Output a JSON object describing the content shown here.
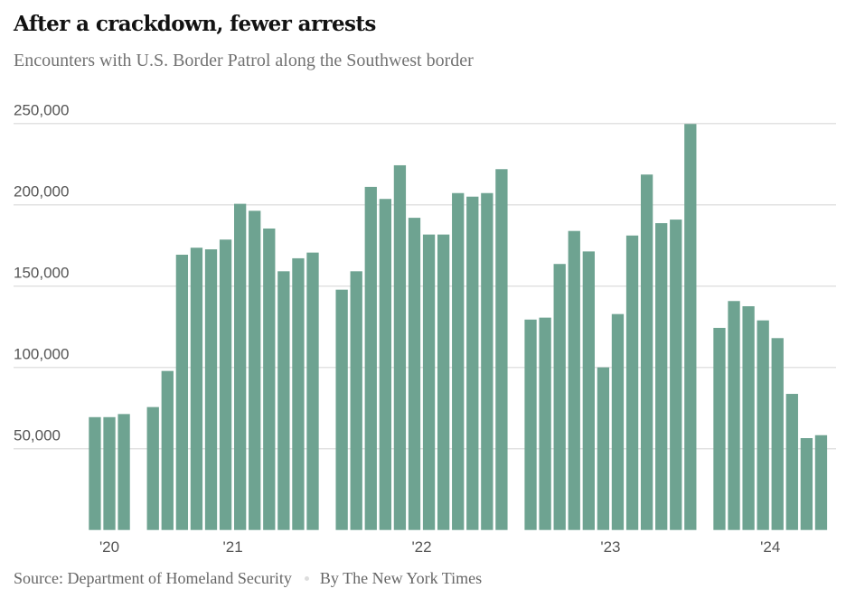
{
  "chart_data": {
    "type": "bar",
    "title": "After a crackdown, fewer arrests",
    "subtitle": "Encounters with U.S. Border Patrol along the Southwest border",
    "xlabel": "",
    "ylabel": "",
    "ylim": [
      0,
      250000
    ],
    "yticks": [
      50000,
      100000,
      150000,
      200000,
      250000
    ],
    "ytick_labels": [
      "50,000",
      "100,000",
      "150,000",
      "200,000",
      "250,000"
    ],
    "grid": true,
    "bar_color": "#6ea391",
    "groups": [
      {
        "label": "'20",
        "months": [
          "2020-10",
          "2020-11",
          "2020-12"
        ],
        "values": [
          69400,
          69400,
          71300
        ]
      },
      {
        "label": "'21",
        "months": [
          "2021-01",
          "2021-02",
          "2021-03",
          "2021-04",
          "2021-05",
          "2021-06",
          "2021-07",
          "2021-08",
          "2021-09",
          "2021-10",
          "2021-11",
          "2021-12"
        ],
        "values": [
          75600,
          97800,
          169300,
          173600,
          172600,
          178600,
          200600,
          196300,
          185400,
          159100,
          167100,
          170600
        ]
      },
      {
        "label": "'22",
        "months": [
          "2022-01",
          "2022-02",
          "2022-03",
          "2022-04",
          "2022-05",
          "2022-06",
          "2022-07",
          "2022-08",
          "2022-09",
          "2022-10",
          "2022-11",
          "2022-12"
        ],
        "values": [
          147800,
          159100,
          211000,
          203600,
          224300,
          192000,
          181700,
          181700,
          207200,
          205000,
          207200,
          221900
        ]
      },
      {
        "label": "'23",
        "months": [
          "2023-01",
          "2023-02",
          "2023-03",
          "2023-04",
          "2023-05",
          "2023-06",
          "2023-07",
          "2023-08",
          "2023-09",
          "2023-10",
          "2023-11",
          "2023-12"
        ],
        "values": [
          129400,
          130600,
          163600,
          183900,
          171300,
          100000,
          132800,
          181100,
          218600,
          188700,
          190900,
          249700
        ]
      },
      {
        "label": "'24",
        "months": [
          "2024-01",
          "2024-02",
          "2024-03",
          "2024-04",
          "2024-05",
          "2024-06",
          "2024-07",
          "2024-08"
        ],
        "values": [
          124300,
          140800,
          137600,
          128900,
          118000,
          83700,
          56500,
          58300
        ]
      }
    ]
  },
  "footer": {
    "source": "Source: Department of Homeland Security",
    "credit": "By The New York Times"
  }
}
